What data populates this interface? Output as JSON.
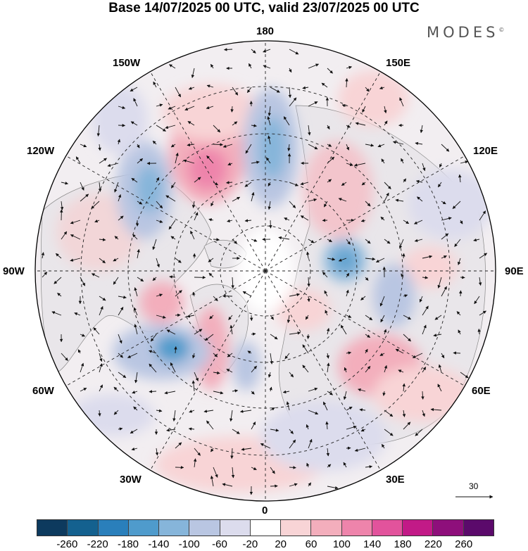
{
  "title": "Base 14/07/2025 00 UTC, valid 23/07/2025 00 UTC",
  "brand": "MODES",
  "brand_mark": "©",
  "longitude_labels": {
    "top": "180",
    "bottom": "0",
    "left": "90W",
    "right": "90E",
    "upper_left_1": "150W",
    "upper_left_2": "120W",
    "upper_right_1": "150E",
    "upper_right_2": "120E",
    "lower_left_1": "60W",
    "lower_left_2": "30W",
    "lower_right_1": "60E",
    "lower_right_2": "30E"
  },
  "reference_vector": {
    "label": "30"
  },
  "colorbar": {
    "ticks": [
      "-260",
      "-220",
      "-180",
      "-140",
      "-100",
      "-60",
      "-20",
      "20",
      "60",
      "100",
      "140",
      "180",
      "220",
      "260"
    ],
    "colors": [
      "#0d3a5e",
      "#14618f",
      "#2a7fbb",
      "#4f9bcc",
      "#86b5da",
      "#b9c6e2",
      "#dcdced",
      "#ffffff",
      "#f8d4d6",
      "#f3aebc",
      "#ee84ab",
      "#e2539c",
      "#c21a87",
      "#8e0f7b",
      "#5b0a6b"
    ]
  },
  "anomaly_centers": [
    {
      "lon_label": "150W",
      "sign": "negative",
      "value": -120
    },
    {
      "lon_label": "165W",
      "sign": "positive",
      "value": 130
    },
    {
      "lon_label": "170E",
      "sign": "negative",
      "value": -110
    },
    {
      "lon_label": "80E",
      "sign": "negative",
      "value": -140
    },
    {
      "lon_label": "95W",
      "sign": "positive",
      "value": 90
    },
    {
      "lon_label": "60W",
      "sign": "negative",
      "value": -160
    },
    {
      "lon_label": "40E",
      "sign": "positive",
      "value": 110
    }
  ]
}
